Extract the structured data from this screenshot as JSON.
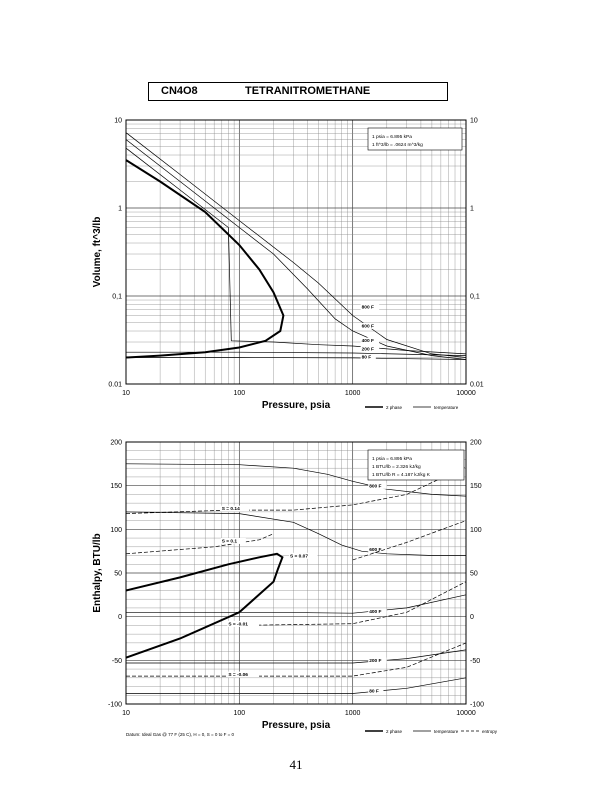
{
  "page": {
    "formula": "CN4O8",
    "name": "TETRANITROMETHANE",
    "page_number": "41"
  },
  "chart_data": [
    {
      "type": "line",
      "title": "",
      "xlabel": "Pressure, psia",
      "ylabel": "Volume, ft^3/lb",
      "x_scale": "log",
      "y_scale": "log",
      "xlim": [
        10,
        10000
      ],
      "ylim": [
        0.01,
        10
      ],
      "x_ticks": [
        10,
        100,
        1000,
        10000
      ],
      "x_tick_labels": [
        "10",
        "100",
        "1000",
        "10000"
      ],
      "y_ticks": [
        0.01,
        0.1,
        1,
        10
      ],
      "y_tick_labels": [
        "0.01",
        "0,1",
        "1",
        "10"
      ],
      "grid": true,
      "legend": {
        "placement": "below-right",
        "entries": [
          {
            "label": "2 phase",
            "style": "bold"
          },
          {
            "label": "temperature",
            "style": "thin"
          }
        ]
      },
      "conversion_box": [
        "1 psia = 6.895 kPa",
        "1 ft^3/lb = .0624 m^3/kg"
      ],
      "series": [
        {
          "name": "2 phase",
          "style": "bold",
          "points": [
            [
              10,
              3.5
            ],
            [
              20,
              2.0
            ],
            [
              50,
              0.9
            ],
            [
              100,
              0.38
            ],
            [
              150,
              0.2
            ],
            [
              200,
              0.11
            ],
            [
              245,
              0.06
            ],
            [
              230,
              0.04
            ],
            [
              170,
              0.031
            ],
            [
              100,
              0.026
            ],
            [
              50,
              0.023
            ],
            [
              20,
              0.021
            ],
            [
              10,
              0.02
            ]
          ]
        },
        {
          "name": "800 F",
          "style": "thin",
          "label_at": [
            1200,
            0.072
          ],
          "points": [
            [
              10,
              7.2
            ],
            [
              30,
              2.4
            ],
            [
              100,
              0.72
            ],
            [
              300,
              0.24
            ],
            [
              500,
              0.14
            ],
            [
              1000,
              0.06
            ],
            [
              2000,
              0.032
            ],
            [
              5000,
              0.022
            ],
            [
              10000,
              0.02
            ]
          ]
        },
        {
          "name": "600 F",
          "style": "thin",
          "label_at": [
            1200,
            0.044
          ],
          "points": [
            [
              10,
              6.0
            ],
            [
              30,
              2.0
            ],
            [
              100,
              0.6
            ],
            [
              200,
              0.3
            ],
            [
              400,
              0.12
            ],
            [
              700,
              0.055
            ],
            [
              1000,
              0.04
            ],
            [
              2000,
              0.027
            ],
            [
              5000,
              0.021
            ],
            [
              10000,
              0.019
            ]
          ]
        },
        {
          "name": "400 F",
          "style": "thin",
          "label_at": [
            1200,
            0.03
          ],
          "points": [
            [
              10,
              4.8
            ],
            [
              30,
              1.6
            ],
            [
              80,
              0.6
            ],
            [
              85,
              0.031
            ],
            [
              200,
              0.03
            ],
            [
              500,
              0.028
            ],
            [
              1000,
              0.027
            ],
            [
              3000,
              0.024
            ],
            [
              10000,
              0.022
            ]
          ]
        },
        {
          "name": "200 F",
          "style": "thin",
          "label_at": [
            1200,
            0.024
          ],
          "points": [
            [
              10,
              0.023
            ],
            [
              100,
              0.023
            ],
            [
              1000,
              0.0225
            ],
            [
              10000,
              0.021
            ]
          ]
        },
        {
          "name": "80 F",
          "style": "thin",
          "label_at": [
            1200,
            0.0195
          ],
          "points": [
            [
              10,
              0.02
            ],
            [
              100,
              0.02
            ],
            [
              1000,
              0.0198
            ],
            [
              10000,
              0.019
            ]
          ]
        }
      ]
    },
    {
      "type": "line",
      "title": "",
      "xlabel": "Pressure, psia",
      "ylabel": "Enthalpy, BTU/lb",
      "x_scale": "log",
      "y_scale": "linear",
      "xlim": [
        10,
        10000
      ],
      "ylim": [
        -100,
        200
      ],
      "x_ticks": [
        10,
        100,
        1000,
        10000
      ],
      "x_tick_labels": [
        "10",
        "100",
        "1000",
        "10000"
      ],
      "y_ticks": [
        -100,
        -50,
        0,
        50,
        100,
        150,
        200
      ],
      "y_tick_labels": [
        "-100",
        "-50",
        "0",
        "50",
        "100",
        "150",
        "200"
      ],
      "grid": true,
      "legend": {
        "placement": "below-right",
        "entries": [
          {
            "label": "2 phase",
            "style": "bold"
          },
          {
            "label": "temperature",
            "style": "thin"
          },
          {
            "label": "entropy",
            "style": "dashed"
          }
        ]
      },
      "conversion_box": [
        "1 psia = 6.895 kPa",
        "1 BTU/lb = 2.326 kJ/kg",
        "1 BTU/lb R = 4.187 kJ/kg K"
      ],
      "footnote": "Datum: Ideal Gas @ 77 F (25 C), H = 0, S = 0 to F = 0",
      "series": [
        {
          "name": "2 phase",
          "style": "bold",
          "points": [
            [
              10,
              -47
            ],
            [
              30,
              -25
            ],
            [
              100,
              5
            ],
            [
              200,
              40
            ],
            [
              220,
              55
            ],
            [
              240,
              68
            ],
            [
              215,
              72
            ],
            [
              150,
              68
            ],
            [
              80,
              60
            ],
            [
              30,
              45
            ],
            [
              10,
              30
            ]
          ]
        },
        {
          "name": "800 F",
          "style": "thin",
          "label_at": [
            1400,
            148
          ],
          "points": [
            [
              10,
              175
            ],
            [
              100,
              174
            ],
            [
              300,
              170
            ],
            [
              600,
              163
            ],
            [
              1000,
              155
            ],
            [
              2000,
              146
            ],
            [
              5000,
              140
            ],
            [
              10000,
              138
            ]
          ]
        },
        {
          "name": "600 F",
          "style": "thin",
          "label_at": [
            1400,
            75
          ],
          "points": [
            [
              10,
              120
            ],
            [
              100,
              118
            ],
            [
              300,
              108
            ],
            [
              500,
              95
            ],
            [
              800,
              82
            ],
            [
              1200,
              75
            ],
            [
              2000,
              72
            ],
            [
              5000,
              70
            ],
            [
              10000,
              70
            ]
          ]
        },
        {
          "name": "400 F",
          "style": "thin",
          "label_at": [
            1400,
            4
          ],
          "points": [
            [
              10,
              5
            ],
            [
              200,
              5
            ],
            [
              1000,
              4
            ],
            [
              3000,
              10
            ],
            [
              10000,
              25
            ]
          ]
        },
        {
          "name": "200 F",
          "style": "thin",
          "label_at": [
            1400,
            -52
          ],
          "points": [
            [
              10,
              -53
            ],
            [
              1000,
              -53
            ],
            [
              3000,
              -48
            ],
            [
              10000,
              -38
            ]
          ]
        },
        {
          "name": "80 F",
          "style": "thin",
          "label_at": [
            1400,
            -87
          ],
          "points": [
            [
              10,
              -88
            ],
            [
              1000,
              -88
            ],
            [
              3000,
              -82
            ],
            [
              10000,
              -70
            ]
          ]
        },
        {
          "name": "S = 0.14",
          "style": "dashed",
          "label_at": [
            70,
            122
          ],
          "points": [
            [
              10,
              118
            ],
            [
              80,
              122
            ],
            [
              300,
              122
            ],
            [
              1000,
              128
            ],
            [
              3000,
              140
            ],
            [
              10000,
              172
            ]
          ]
        },
        {
          "name": "S = 0.1",
          "style": "dashed",
          "label_at": [
            70,
            85
          ],
          "points": [
            [
              10,
              72
            ],
            [
              60,
              80
            ],
            [
              150,
              88
            ],
            [
              200,
              95
            ]
          ]
        },
        {
          "name": "S = 0.07",
          "style": "dashed",
          "label_at": [
            280,
            68
          ],
          "points": [
            [
              1000,
              65
            ],
            [
              3000,
              85
            ],
            [
              10000,
              110
            ]
          ]
        },
        {
          "name": "S = -0.01",
          "style": "dashed",
          "label_at": [
            80,
            -10
          ],
          "points": [
            [
              100,
              -10
            ],
            [
              1000,
              -8
            ],
            [
              3000,
              5
            ],
            [
              10000,
              40
            ]
          ]
        },
        {
          "name": "S = -0.06",
          "style": "dashed",
          "label_at": [
            80,
            -68
          ],
          "points": [
            [
              10,
              -68
            ],
            [
              1000,
              -68
            ],
            [
              3000,
              -58
            ],
            [
              10000,
              -30
            ]
          ]
        }
      ]
    }
  ]
}
